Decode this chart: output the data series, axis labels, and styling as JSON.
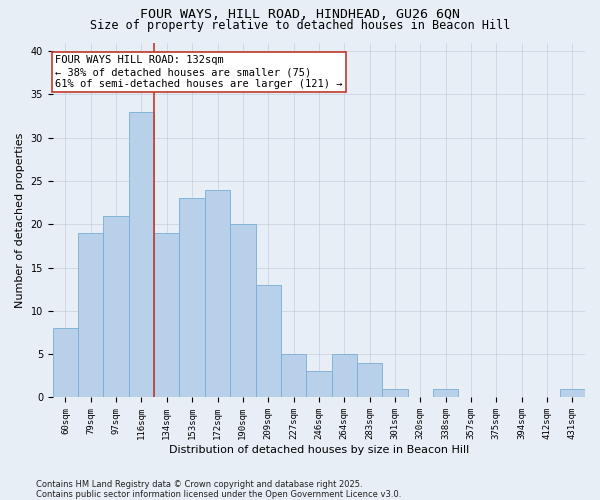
{
  "title": "FOUR WAYS, HILL ROAD, HINDHEAD, GU26 6QN",
  "subtitle": "Size of property relative to detached houses in Beacon Hill",
  "xlabel": "Distribution of detached houses by size in Beacon Hill",
  "ylabel": "Number of detached properties",
  "categories": [
    "60sqm",
    "79sqm",
    "97sqm",
    "116sqm",
    "134sqm",
    "153sqm",
    "172sqm",
    "190sqm",
    "209sqm",
    "227sqm",
    "246sqm",
    "264sqm",
    "283sqm",
    "301sqm",
    "320sqm",
    "338sqm",
    "357sqm",
    "375sqm",
    "394sqm",
    "412sqm",
    "431sqm"
  ],
  "values": [
    8,
    19,
    21,
    33,
    19,
    23,
    24,
    20,
    13,
    5,
    3,
    5,
    4,
    1,
    0,
    1,
    0,
    0,
    0,
    0,
    1
  ],
  "bar_color": "#b8d0ea",
  "bar_edge_color": "#7aadd4",
  "vline_color": "#c0392b",
  "vline_x_index": 3.5,
  "annotation_text": "FOUR WAYS HILL ROAD: 132sqm\n← 38% of detached houses are smaller (75)\n61% of semi-detached houses are larger (121) →",
  "annotation_box_color": "#ffffff",
  "annotation_box_edge": "#c0392b",
  "ylim": [
    0,
    41
  ],
  "yticks": [
    0,
    5,
    10,
    15,
    20,
    25,
    30,
    35,
    40
  ],
  "bg_color": "#e8eef6",
  "footer": "Contains HM Land Registry data © Crown copyright and database right 2025.\nContains public sector information licensed under the Open Government Licence v3.0.",
  "title_fontsize": 9.5,
  "subtitle_fontsize": 8.5,
  "xlabel_fontsize": 8,
  "ylabel_fontsize": 8,
  "tick_fontsize": 6.5,
  "annotation_fontsize": 7.5
}
